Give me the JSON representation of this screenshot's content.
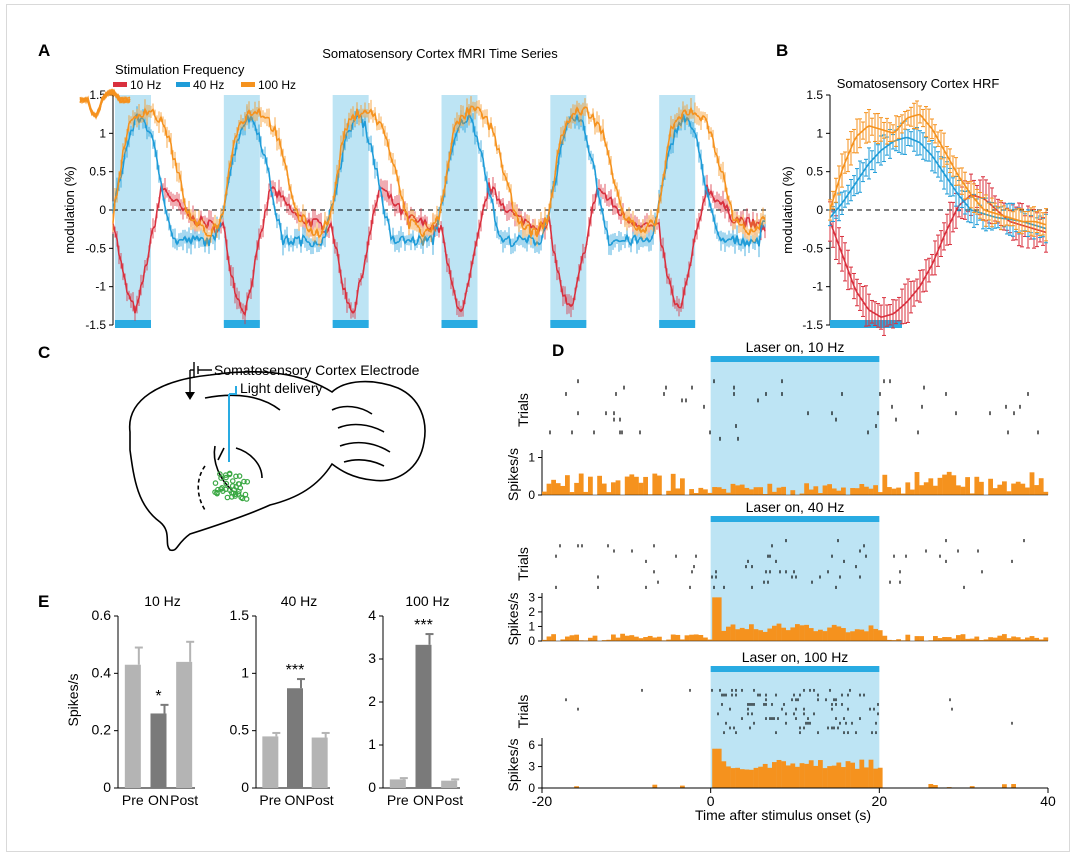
{
  "panels": {
    "A": {
      "letter": "A",
      "title": "Somatosensory Cortex fMRI Time Series",
      "legend_title": "Stimulation Frequency",
      "ylabel": "modulation (%)"
    },
    "B": {
      "letter": "B",
      "title": "Somatosensory Cortex HRF",
      "ylabel": "modulation (%)"
    },
    "C": {
      "letter": "C",
      "electrode_label": "Somatosensory Cortex Electrode",
      "light_label": "Light delivery"
    },
    "D": {
      "letter": "D",
      "xlabel": "Time after stimulus onset (s)",
      "trials_label": "Trials",
      "rate_label": "Spikes/s"
    },
    "E": {
      "letter": "E",
      "ylabel": "Spikes/s"
    }
  },
  "colors": {
    "hz10": "#d9303e",
    "hz40": "#1f9cd8",
    "hz100": "#f5921e",
    "stim": "#bde4f4",
    "stimbar": "#29abe2",
    "psth": "#f5921e",
    "bar_light": "#b4b4b4",
    "bar_dark": "#7a7a7a"
  },
  "chart_data": [
    {
      "panel": "A",
      "type": "line",
      "title": "Somatosensory Cortex fMRI Time Series",
      "ylabel": "modulation (%)",
      "ylim": [
        -1.5,
        1.5
      ],
      "yticks": [
        "1.5",
        "1",
        "0.5",
        "0",
        "-0.5",
        "-1",
        "-1.5"
      ],
      "stimulation_blocks": 6,
      "zero_line": "dashed",
      "series": [
        {
          "name": "10 Hz",
          "color": "#d9303e",
          "cycle_min": -1.3,
          "cycle_peak": 0.3
        },
        {
          "name": "40 Hz",
          "color": "#1f9cd8",
          "cycle_min": -0.3,
          "cycle_peak": 1.2
        },
        {
          "name": "100 Hz",
          "color": "#f5921e",
          "cycle_min": -0.2,
          "cycle_peak": 1.3
        }
      ]
    },
    {
      "panel": "B",
      "type": "line",
      "title": "Somatosensory Cortex HRF",
      "ylabel": "modulation (%)",
      "ylim": [
        -1.5,
        1.5
      ],
      "yticks": [
        "1.5",
        "1",
        "0.5",
        "0",
        "-0.5",
        "-1",
        "-1.5"
      ],
      "series": [
        {
          "name": "10 Hz",
          "color": "#d9303e",
          "values": [
            -0.15,
            -0.6,
            -1.05,
            -1.3,
            -1.4,
            -1.35,
            -1.2,
            -1.0,
            -0.7,
            -0.3,
            0.05,
            0.2,
            0.15,
            0.0,
            -0.15,
            -0.2,
            -0.25,
            -0.3
          ]
        },
        {
          "name": "40 Hz",
          "color": "#1f9cd8",
          "values": [
            -0.1,
            0.1,
            0.35,
            0.6,
            0.78,
            0.9,
            0.95,
            0.88,
            0.7,
            0.45,
            0.2,
            0.0,
            -0.05,
            -0.1,
            -0.12,
            -0.15,
            -0.2,
            -0.25
          ]
        },
        {
          "name": "100 Hz",
          "color": "#f5921e",
          "values": [
            0.0,
            0.55,
            0.95,
            1.1,
            1.05,
            1.0,
            1.2,
            1.25,
            1.05,
            0.75,
            0.45,
            0.2,
            0.0,
            -0.05,
            -0.1,
            -0.15,
            -0.15,
            -0.2
          ]
        }
      ]
    },
    {
      "panel": "D",
      "type": "bar",
      "xlabel": "Time after stimulus onset (s)",
      "xlim": [
        -20,
        40
      ],
      "xticks": [
        "-20",
        "0",
        "20",
        "40"
      ],
      "stimulus_window": [
        0,
        20
      ],
      "rasters": [
        {
          "label": "Laser on, 10 Hz",
          "yticks": [
            "0",
            "1"
          ],
          "ylim": [
            0,
            1.2
          ]
        },
        {
          "label": "Laser on, 40 Hz",
          "yticks": [
            "0",
            "1",
            "2",
            "3"
          ],
          "ylim": [
            0,
            3.3
          ]
        },
        {
          "label": "Laser on, 100 Hz",
          "yticks": [
            "0",
            "3",
            "6"
          ],
          "ylim": [
            0,
            7
          ]
        }
      ]
    },
    {
      "panel": "E",
      "type": "bar",
      "ylabel": "Spikes/s",
      "subplots": [
        {
          "title": "10 Hz",
          "categories": [
            "Pre",
            "ON",
            "Post"
          ],
          "values": [
            0.43,
            0.26,
            0.44
          ],
          "errors": [
            0.06,
            0.03,
            0.07
          ],
          "ylim": [
            0,
            0.6
          ],
          "yticks": [
            "0",
            "0.2",
            "0.4",
            "0.6"
          ],
          "significance": "*"
        },
        {
          "title": "40 Hz",
          "categories": [
            "Pre",
            "ON",
            "Post"
          ],
          "values": [
            0.45,
            0.87,
            0.44
          ],
          "errors": [
            0.03,
            0.08,
            0.04
          ],
          "ylim": [
            0,
            1.5
          ],
          "yticks": [
            "0",
            "0.5",
            "1",
            "1.5"
          ],
          "significance": "***"
        },
        {
          "title": "100 Hz",
          "categories": [
            "Pre",
            "ON",
            "Post"
          ],
          "values": [
            0.2,
            3.33,
            0.17
          ],
          "errors": [
            0.03,
            0.25,
            0.03
          ],
          "ylim": [
            0,
            4
          ],
          "yticks": [
            "0",
            "1",
            "2",
            "3",
            "4"
          ],
          "significance": "***"
        }
      ]
    }
  ]
}
